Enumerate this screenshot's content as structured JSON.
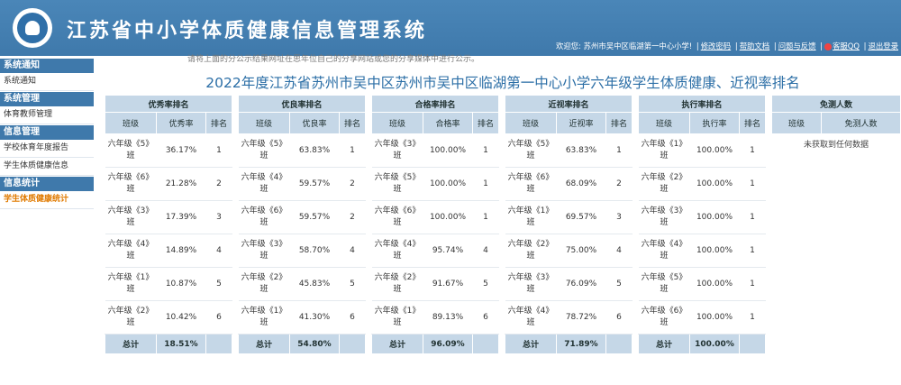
{
  "app": {
    "title": "江苏省中小学体质健康信息管理系统"
  },
  "userbar": {
    "welcome": "欢迎您: 苏州市吴中区临湖第一中心小学!",
    "links": [
      "修改密码",
      "帮助文档",
      "问题与反馈",
      "客服QQ",
      "退出登录"
    ]
  },
  "sidebar": [
    {
      "group": "系统通知",
      "items": [
        {
          "label": "系统通知",
          "active": false
        }
      ]
    },
    {
      "group": "系统管理",
      "items": [
        {
          "label": "体育教师管理",
          "active": false
        }
      ]
    },
    {
      "group": "信息管理",
      "items": [
        {
          "label": "学校体育年度报告",
          "active": false
        },
        {
          "label": "学生体质健康信息",
          "active": false
        }
      ]
    },
    {
      "group": "信息统计",
      "items": [
        {
          "label": "学生体质健康统计",
          "active": true
        }
      ]
    }
  ],
  "notice": "请将上面的分公示结果网址在思年位自己的分享网站或您的分享媒体中进行公示。",
  "page_title": "2022年度江苏省苏州市吴中区苏州市吴中区临湖第一中心小学六年级学生体质健康、近视率排名",
  "tables": [
    {
      "caption": "优秀率排名",
      "headers": [
        "班级",
        "优秀率",
        "排名"
      ],
      "rows": [
        [
          "六年级《5》班",
          "36.17%",
          "1"
        ],
        [
          "六年级《6》班",
          "21.28%",
          "2"
        ],
        [
          "六年级《3》班",
          "17.39%",
          "3"
        ],
        [
          "六年级《4》班",
          "14.89%",
          "4"
        ],
        [
          "六年级《1》班",
          "10.87%",
          "5"
        ],
        [
          "六年级《2》班",
          "10.42%",
          "6"
        ]
      ],
      "total": [
        "总计",
        "18.51%"
      ]
    },
    {
      "caption": "优良率排名",
      "headers": [
        "班级",
        "优良率",
        "排名"
      ],
      "rows": [
        [
          "六年级《5》班",
          "63.83%",
          "1"
        ],
        [
          "六年级《4》班",
          "59.57%",
          "2"
        ],
        [
          "六年级《6》班",
          "59.57%",
          "2"
        ],
        [
          "六年级《3》班",
          "58.70%",
          "4"
        ],
        [
          "六年级《2》班",
          "45.83%",
          "5"
        ],
        [
          "六年级《1》班",
          "41.30%",
          "6"
        ]
      ],
      "total": [
        "总计",
        "54.80%"
      ]
    },
    {
      "caption": "合格率排名",
      "headers": [
        "班级",
        "合格率",
        "排名"
      ],
      "rows": [
        [
          "六年级《3》班",
          "100.00%",
          "1"
        ],
        [
          "六年级《5》班",
          "100.00%",
          "1"
        ],
        [
          "六年级《6》班",
          "100.00%",
          "1"
        ],
        [
          "六年级《4》班",
          "95.74%",
          "4"
        ],
        [
          "六年级《2》班",
          "91.67%",
          "5"
        ],
        [
          "六年级《1》班",
          "89.13%",
          "6"
        ]
      ],
      "total": [
        "总计",
        "96.09%"
      ]
    },
    {
      "caption": "近视率排名",
      "headers": [
        "班级",
        "近视率",
        "排名"
      ],
      "rows": [
        [
          "六年级《5》班",
          "63.83%",
          "1"
        ],
        [
          "六年级《6》班",
          "68.09%",
          "2"
        ],
        [
          "六年级《1》班",
          "69.57%",
          "3"
        ],
        [
          "六年级《2》班",
          "75.00%",
          "4"
        ],
        [
          "六年级《3》班",
          "76.09%",
          "5"
        ],
        [
          "六年级《4》班",
          "78.72%",
          "6"
        ]
      ],
      "total": [
        "总计",
        "71.89%"
      ]
    },
    {
      "caption": "执行率排名",
      "headers": [
        "班级",
        "执行率",
        "排名"
      ],
      "rows": [
        [
          "六年级《1》班",
          "100.00%",
          "1"
        ],
        [
          "六年级《2》班",
          "100.00%",
          "1"
        ],
        [
          "六年级《3》班",
          "100.00%",
          "1"
        ],
        [
          "六年级《4》班",
          "100.00%",
          "1"
        ],
        [
          "六年级《5》班",
          "100.00%",
          "1"
        ],
        [
          "六年级《6》班",
          "100.00%",
          "1"
        ]
      ],
      "total": [
        "总计",
        "100.00%"
      ]
    }
  ],
  "exempt": {
    "caption": "免测人数",
    "headers": [
      "班级",
      "免测人数"
    ],
    "empty_text": "未获取到任何数据"
  },
  "colors": {
    "header": "#3f79ab",
    "table_head": "#c5d7e7",
    "title": "#2b6ea6",
    "active_menu": "#e07a00"
  }
}
